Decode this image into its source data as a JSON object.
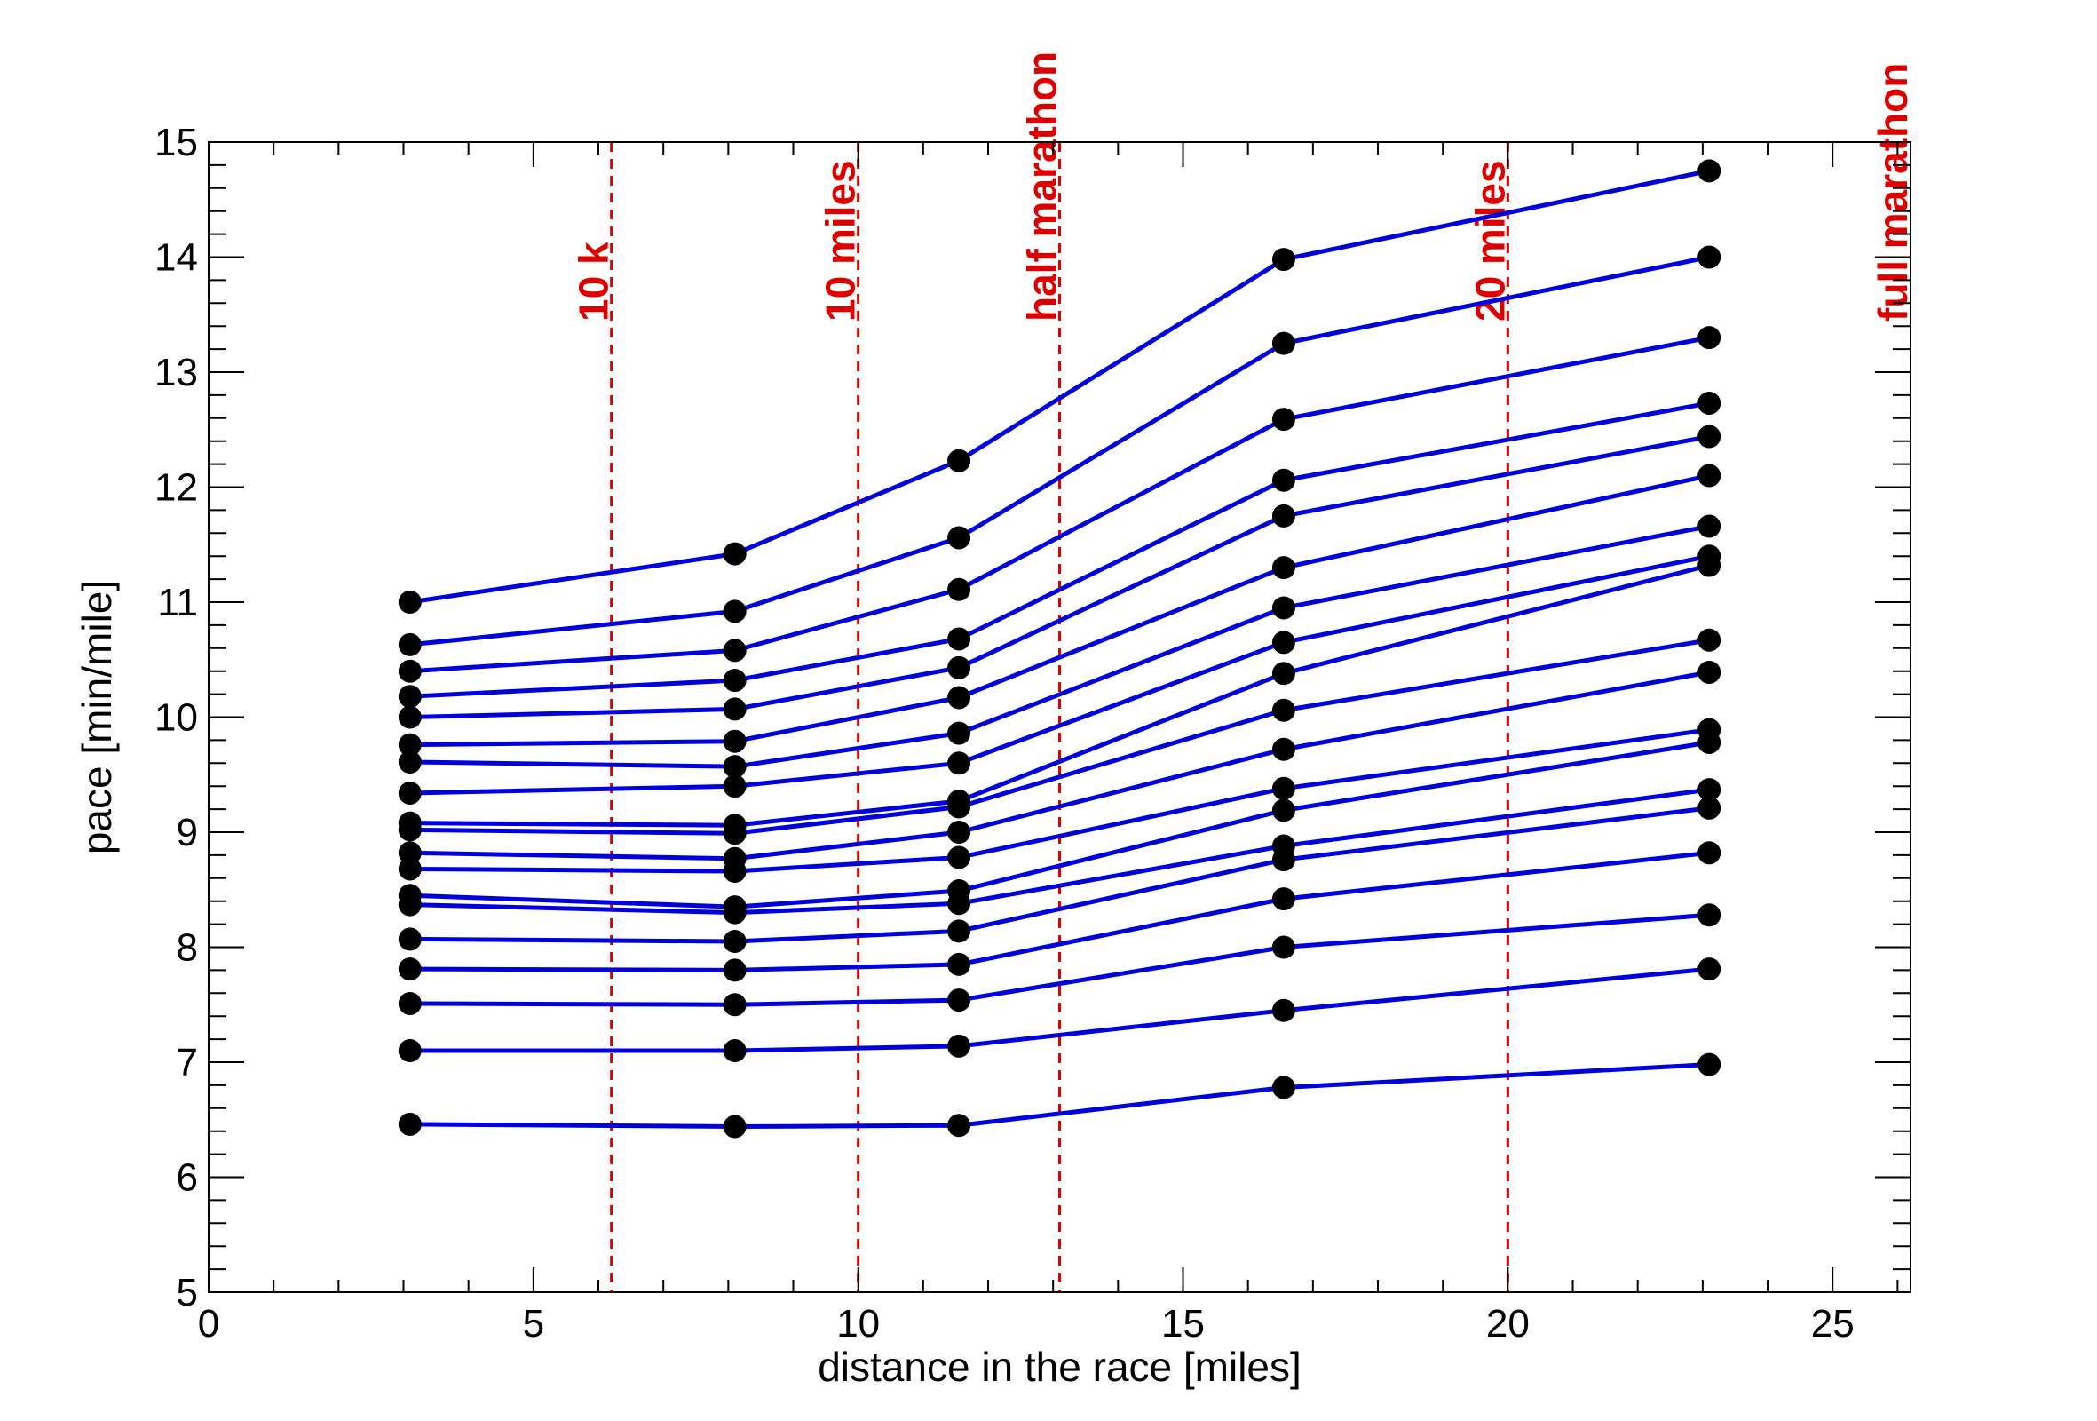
{
  "chart_data": {
    "type": "line",
    "title": "",
    "xlabel": "distance in the race [miles]",
    "ylabel": "pace [min/mile]",
    "xlim": [
      0,
      26.2
    ],
    "ylim": [
      5,
      15
    ],
    "x_ticks": [
      0,
      5,
      10,
      15,
      20,
      25
    ],
    "y_ticks": [
      5,
      6,
      7,
      8,
      9,
      10,
      11,
      12,
      13,
      14,
      15
    ],
    "grid": false,
    "legend": "none",
    "line_color": "#0000dd",
    "marker_color": "#000000",
    "reference_color": "#dd0000",
    "x": [
      3.1,
      8.1,
      11.55,
      16.55,
      23.1
    ],
    "reference_lines": [
      {
        "x": 6.2,
        "label": "10 k"
      },
      {
        "x": 10.0,
        "label": "10 miles"
      },
      {
        "x": 13.1,
        "label": "half marathon"
      },
      {
        "x": 20.0,
        "label": "20 miles"
      },
      {
        "x": 26.2,
        "label": "full marathon"
      }
    ],
    "series": [
      {
        "values": [
          11.0,
          11.42,
          12.23,
          13.98,
          14.75
        ]
      },
      {
        "values": [
          10.63,
          10.92,
          11.56,
          13.25,
          14.0
        ]
      },
      {
        "values": [
          10.4,
          10.58,
          11.11,
          12.59,
          13.3
        ]
      },
      {
        "values": [
          10.18,
          10.32,
          10.68,
          12.06,
          12.73
        ]
      },
      {
        "values": [
          10.0,
          10.07,
          10.43,
          11.75,
          12.44
        ]
      },
      {
        "values": [
          9.76,
          9.79,
          10.17,
          11.3,
          12.1
        ]
      },
      {
        "values": [
          9.61,
          9.57,
          9.86,
          10.95,
          11.66
        ]
      },
      {
        "values": [
          9.34,
          9.4,
          9.6,
          10.65,
          11.4
        ]
      },
      {
        "values": [
          9.08,
          9.06,
          9.27,
          10.38,
          11.32
        ]
      },
      {
        "values": [
          9.02,
          8.99,
          9.22,
          10.06,
          10.67
        ]
      },
      {
        "values": [
          8.82,
          8.77,
          9.0,
          9.72,
          10.39
        ]
      },
      {
        "values": [
          8.68,
          8.66,
          8.78,
          9.38,
          9.89
        ]
      },
      {
        "values": [
          8.45,
          8.35,
          8.49,
          9.19,
          9.78
        ]
      },
      {
        "values": [
          8.37,
          8.3,
          8.38,
          8.88,
          9.37
        ]
      },
      {
        "values": [
          8.07,
          8.05,
          8.14,
          8.76,
          9.21
        ]
      },
      {
        "values": [
          7.81,
          7.8,
          7.85,
          8.42,
          8.82
        ]
      },
      {
        "values": [
          7.51,
          7.5,
          7.54,
          8.0,
          8.28
        ]
      },
      {
        "values": [
          7.1,
          7.1,
          7.14,
          7.45,
          7.81
        ]
      },
      {
        "values": [
          6.46,
          6.44,
          6.45,
          6.78,
          6.98
        ]
      }
    ]
  }
}
